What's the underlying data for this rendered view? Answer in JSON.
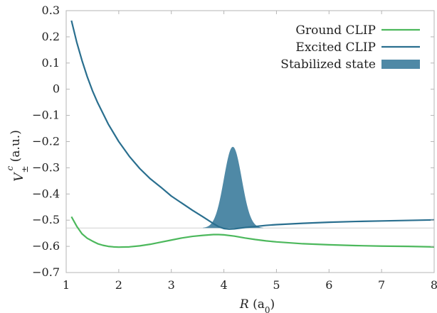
{
  "chart_data": {
    "type": "line",
    "xlabel": "R (a0)",
    "ylabel": "V±c (a.u.)",
    "xlim": [
      1,
      8
    ],
    "ylim": [
      -0.7,
      0.3
    ],
    "xticks": [
      "1",
      "2",
      "3",
      "4",
      "5",
      "6",
      "7",
      "8"
    ],
    "yticks": [
      "0.3",
      "0.2",
      "0.1",
      "0",
      "−0.1",
      "−0.2",
      "−0.3",
      "−0.4",
      "−0.5",
      "−0.6",
      "−0.7"
    ],
    "legend_position": "top-right",
    "reference_line_y": -0.53,
    "series": [
      {
        "name": "Ground CLIP",
        "color": "#4cb85c",
        "style": "line",
        "points": [
          [
            1.1,
            -0.487
          ],
          [
            1.2,
            -0.523
          ],
          [
            1.3,
            -0.552
          ],
          [
            1.4,
            -0.569
          ],
          [
            1.5,
            -0.58
          ],
          [
            1.6,
            -0.59
          ],
          [
            1.7,
            -0.596
          ],
          [
            1.8,
            -0.6
          ],
          [
            1.9,
            -0.602
          ],
          [
            2.0,
            -0.603
          ],
          [
            2.2,
            -0.602
          ],
          [
            2.4,
            -0.598
          ],
          [
            2.6,
            -0.592
          ],
          [
            2.8,
            -0.584
          ],
          [
            3.0,
            -0.576
          ],
          [
            3.2,
            -0.568
          ],
          [
            3.4,
            -0.562
          ],
          [
            3.6,
            -0.558
          ],
          [
            3.8,
            -0.555
          ],
          [
            3.9,
            -0.555
          ],
          [
            4.0,
            -0.556
          ],
          [
            4.2,
            -0.561
          ],
          [
            4.4,
            -0.568
          ],
          [
            4.6,
            -0.574
          ],
          [
            4.8,
            -0.579
          ],
          [
            5.0,
            -0.583
          ],
          [
            5.5,
            -0.59
          ],
          [
            6.0,
            -0.594
          ],
          [
            6.5,
            -0.597
          ],
          [
            7.0,
            -0.599
          ],
          [
            7.5,
            -0.6
          ],
          [
            8.0,
            -0.602
          ]
        ]
      },
      {
        "name": "Excited CLIP",
        "color": "#2a6f8f",
        "style": "line",
        "points": [
          [
            1.1,
            0.262
          ],
          [
            1.2,
            0.18
          ],
          [
            1.3,
            0.11
          ],
          [
            1.4,
            0.048
          ],
          [
            1.5,
            -0.006
          ],
          [
            1.6,
            -0.052
          ],
          [
            1.8,
            -0.133
          ],
          [
            2.0,
            -0.2
          ],
          [
            2.2,
            -0.256
          ],
          [
            2.4,
            -0.303
          ],
          [
            2.6,
            -0.342
          ],
          [
            2.8,
            -0.374
          ],
          [
            3.0,
            -0.408
          ],
          [
            3.2,
            -0.435
          ],
          [
            3.4,
            -0.462
          ],
          [
            3.6,
            -0.487
          ],
          [
            3.8,
            -0.513
          ],
          [
            3.9,
            -0.525
          ],
          [
            4.0,
            -0.532
          ],
          [
            4.1,
            -0.534
          ],
          [
            4.2,
            -0.533
          ],
          [
            4.4,
            -0.528
          ],
          [
            4.6,
            -0.524
          ],
          [
            4.8,
            -0.52
          ],
          [
            5.0,
            -0.517
          ],
          [
            5.5,
            -0.512
          ],
          [
            6.0,
            -0.508
          ],
          [
            6.5,
            -0.505
          ],
          [
            7.0,
            -0.503
          ],
          [
            7.5,
            -0.501
          ],
          [
            8.0,
            -0.499
          ]
        ]
      },
      {
        "name": "Stabilized state",
        "color": "#4f89a6",
        "style": "filled-peak",
        "baseline": -0.53,
        "peak_x": 4.17,
        "peak_y": -0.22,
        "x_range": [
          3.6,
          4.75
        ]
      }
    ]
  }
}
